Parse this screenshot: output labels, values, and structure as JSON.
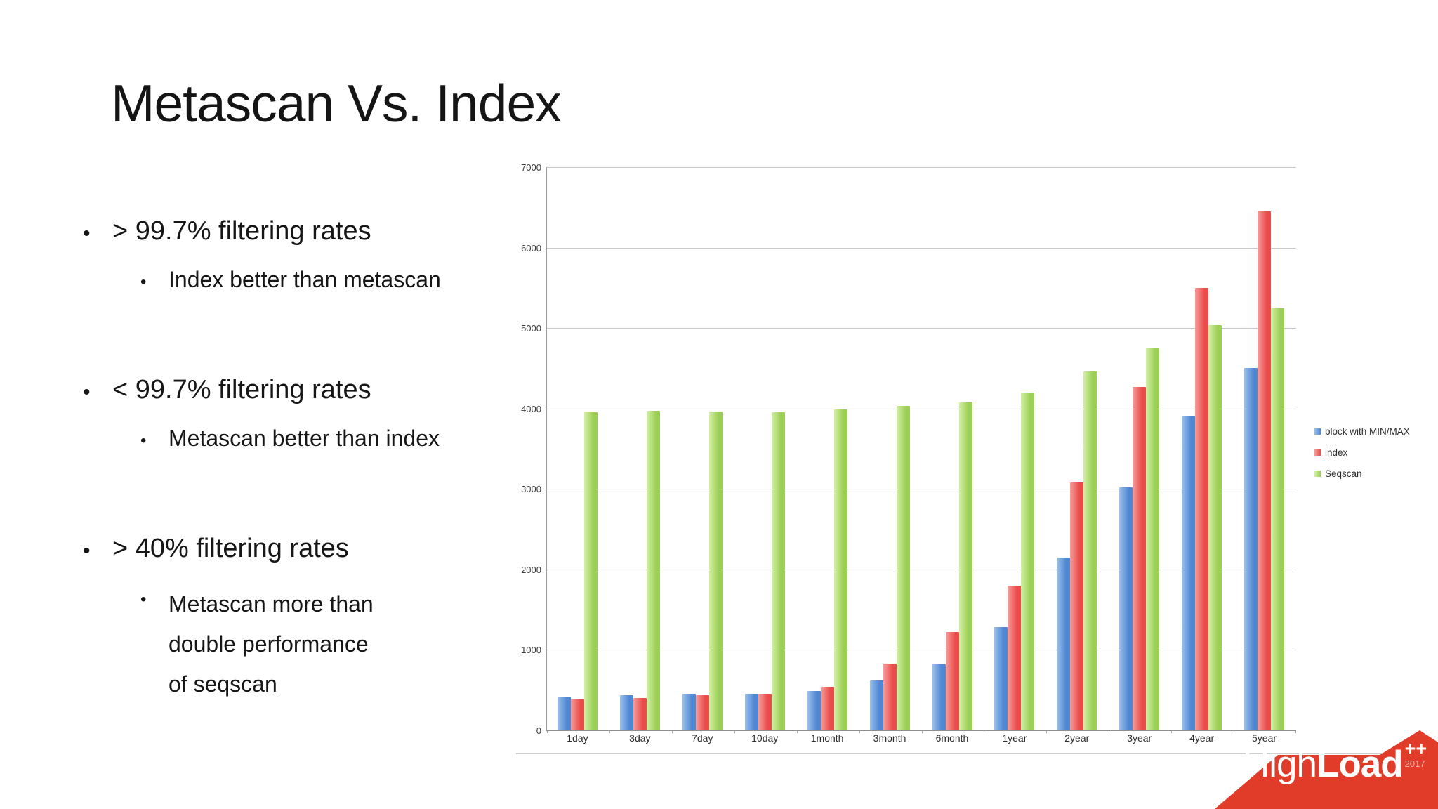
{
  "slide": {
    "title": "Metascan Vs. Index",
    "bullets": [
      {
        "text": "> 99.7% filtering rates",
        "subs": [
          "Index better than metascan"
        ]
      },
      {
        "text": "< 99.7% filtering rates",
        "subs": [
          "Metascan better than index"
        ]
      },
      {
        "text": "> 40% filtering rates",
        "subs": [
          "Metascan more than",
          "double performance",
          "of seqscan"
        ]
      }
    ],
    "bullet_glyph": "•"
  },
  "chart_data": {
    "type": "bar",
    "categories": [
      "1day",
      "3day",
      "7day",
      "10day",
      "1month",
      "3month",
      "6month",
      "1year",
      "2year",
      "3year",
      "4year",
      "5year"
    ],
    "series": [
      {
        "name": "block with MIN/MAX",
        "color": "#4f87d3",
        "color_light": "#9cc0ec",
        "values": [
          420,
          440,
          450,
          455,
          490,
          620,
          820,
          1280,
          2150,
          3020,
          3910,
          4500
        ]
      },
      {
        "name": "index",
        "color": "#e94c4a",
        "color_light": "#f79d9b",
        "values": [
          380,
          400,
          440,
          450,
          545,
          830,
          1220,
          1800,
          3080,
          4270,
          5500,
          6450
        ]
      },
      {
        "name": "Seqscan",
        "color": "#9ccf55",
        "color_light": "#d2f0a5",
        "values": [
          3950,
          3970,
          3960,
          3950,
          3990,
          4030,
          4080,
          4200,
          4460,
          4750,
          5040,
          5250
        ]
      }
    ],
    "title": "",
    "xlabel": "",
    "ylabel": "",
    "ylim": [
      0,
      7000
    ],
    "ytick_step": 1000,
    "grid": true,
    "legend_position": "right"
  },
  "colors": {
    "gridline": "#c6c6c6",
    "axis": "#8f8f8f",
    "logo_red": "#e13b2a"
  },
  "logo": {
    "part1": "High",
    "part2": "Load",
    "plusplus": "++",
    "year": "2017"
  }
}
